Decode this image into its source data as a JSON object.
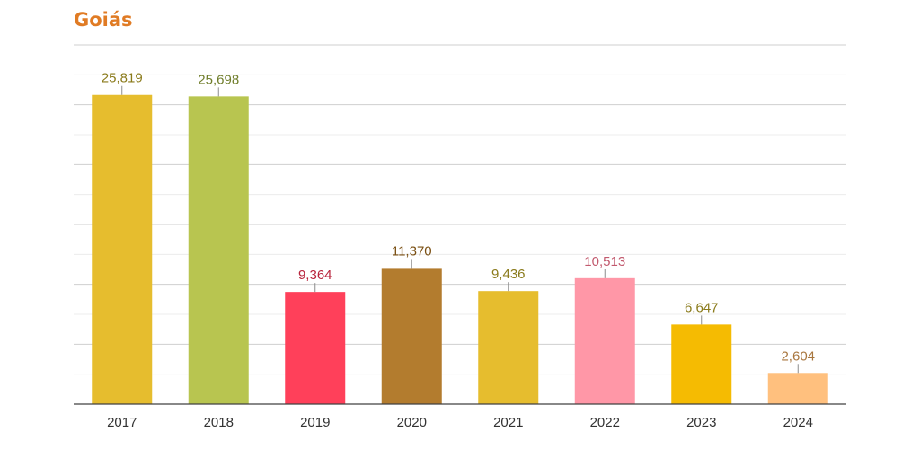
{
  "chart_data": {
    "type": "bar",
    "title": "Goiás",
    "categories": [
      "2017",
      "2018",
      "2019",
      "2020",
      "2021",
      "2022",
      "2023",
      "2024"
    ],
    "values": [
      25819,
      25698,
      9364,
      11370,
      9436,
      10513,
      6647,
      2604
    ],
    "value_labels": [
      "25,819",
      "25,698",
      "9,364",
      "11,370",
      "9,436",
      "10,513",
      "6,647",
      "2,604"
    ],
    "bar_colors": [
      "#e6bd2e",
      "#b8c550",
      "#ff405a",
      "#b37c2e",
      "#e6bd2e",
      "#ff97a7",
      "#f5bb02",
      "#ffc07e"
    ],
    "label_colors": [
      "#8a7a1a",
      "#6f7d2a",
      "#b8243c",
      "#7a4f12",
      "#8a7a1a",
      "#c25a6e",
      "#8a7a1a",
      "#a8763e"
    ],
    "ylim": [
      0,
      30000
    ],
    "grid": true,
    "xlabel": "",
    "ylabel": ""
  }
}
